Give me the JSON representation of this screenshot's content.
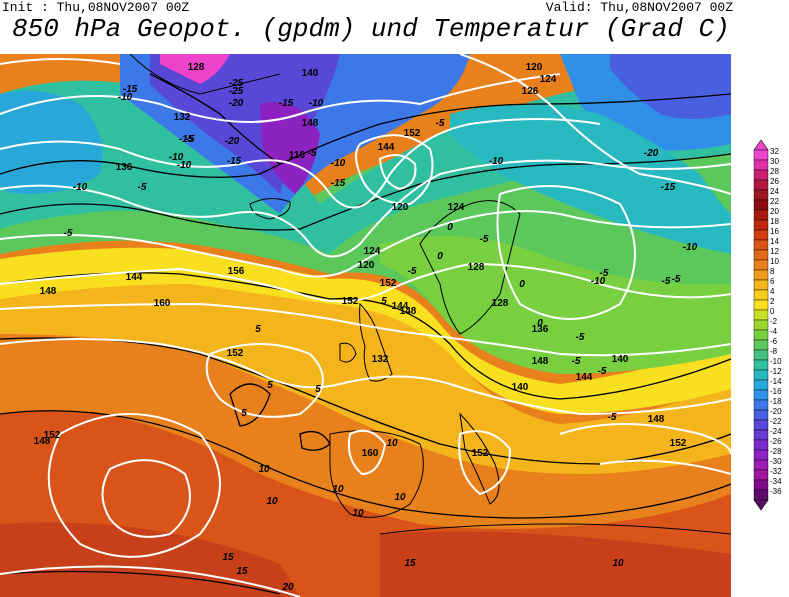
{
  "header": {
    "init": "Init : Thu,08NOV2007 00Z",
    "valid": "Valid: Thu,08NOV2007 00Z",
    "title": "850 hPa Geopot. (gpdm) und Temperatur (Grad C)"
  },
  "colors": {
    "background": "#ffffff",
    "isohypse": "#ffffff",
    "isotherm": "#000000"
  },
  "legend": {
    "levels": [
      "32",
      "30",
      "28",
      "26",
      "24",
      "22",
      "20",
      "18",
      "16",
      "14",
      "12",
      "10",
      "8",
      "6",
      "4",
      "2",
      "0",
      "-2",
      "-4",
      "-6",
      "-8",
      "-10",
      "-12",
      "-14",
      "-16",
      "-18",
      "-20",
      "-22",
      "-24",
      "-26",
      "-28",
      "-30",
      "-32",
      "-34",
      "-36"
    ],
    "colors": [
      "#ee44cc",
      "#e030a8",
      "#c81e6e",
      "#b01840",
      "#9c1a22",
      "#8c0e10",
      "#a81a10",
      "#c02810",
      "#d03c10",
      "#d85418",
      "#e06a1c",
      "#e8801c",
      "#f09a1c",
      "#f4b41c",
      "#f8cc1c",
      "#f8e020",
      "#c8e028",
      "#9cd82c",
      "#78d040",
      "#5cc85c",
      "#44c080",
      "#30c0a0",
      "#28b8c0",
      "#28a8d8",
      "#3090e8",
      "#3c78e8",
      "#4860e0",
      "#5848d8",
      "#6838d0",
      "#7c2cc8",
      "#8c22c0",
      "#9c1cb0",
      "#a016a0",
      "#800c8c",
      "#600c6c"
    ]
  },
  "geopotential_labels": [
    "128",
    "140",
    "120",
    "124",
    "126",
    "132",
    "148",
    "152",
    "116",
    "144",
    "136",
    "120",
    "124",
    "128",
    "156",
    "160",
    "152",
    "148",
    "160",
    "152",
    "148",
    "144",
    "132",
    "128",
    "136",
    "140",
    "144",
    "148",
    "152",
    "152",
    "140",
    "144",
    "148",
    "152",
    "120",
    "124",
    "148",
    "152"
  ],
  "temperature_labels": [
    "-15",
    "-10",
    "-25",
    "-20",
    "-25",
    "-15",
    "-10",
    "-5",
    "-20",
    "-15",
    "-10",
    "-5",
    "-15",
    "-10",
    "-5",
    "-10",
    "-5",
    "-10",
    "-15",
    "-5",
    "-20",
    "-15",
    "-10",
    "-5",
    "-10",
    "-5",
    "-5",
    "-5",
    "-5",
    "-5",
    "0",
    "0",
    "0",
    "5",
    "5",
    "5",
    "5",
    "5",
    "10",
    "10",
    "10",
    "10",
    "10",
    "10",
    "15",
    "15",
    "15",
    "20",
    "10",
    "-5",
    "-10",
    "-5",
    "0",
    "-5"
  ]
}
